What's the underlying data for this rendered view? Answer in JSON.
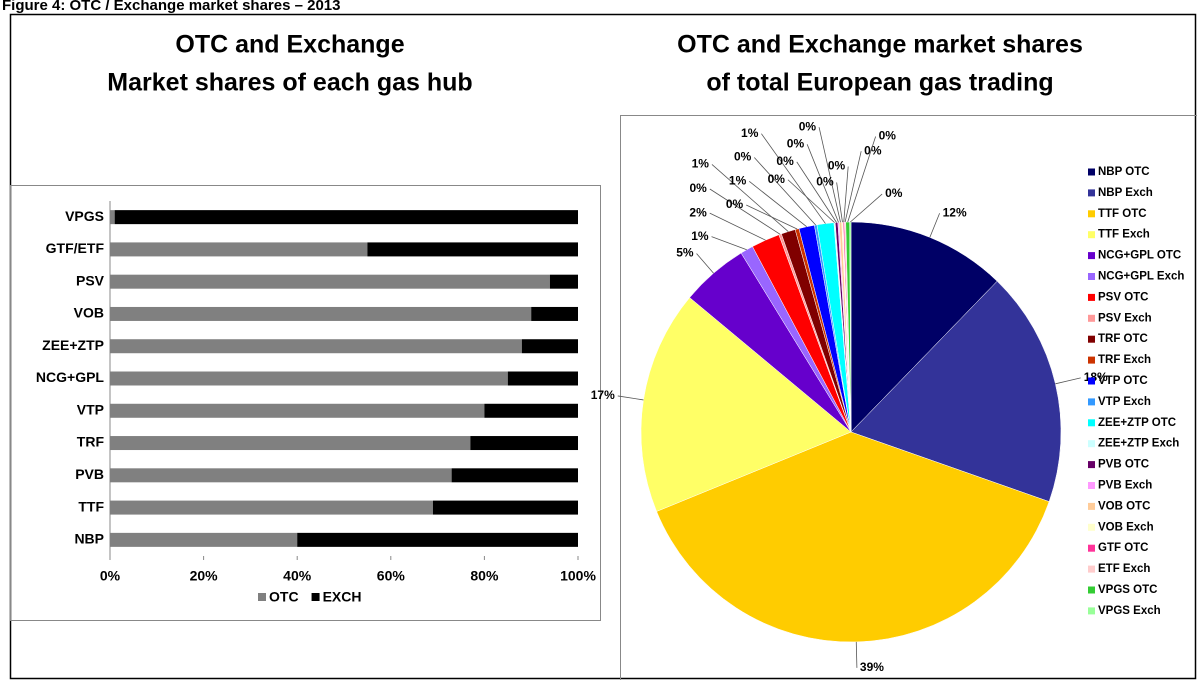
{
  "figure_title": "Figure 4: OTC / Exchange market shares – 2013",
  "chart_data": [
    {
      "type": "bar",
      "orientation": "horizontal",
      "stacked": true,
      "title": [
        "OTC and Exchange",
        "Market shares of each gas hub"
      ],
      "categories": [
        "NBP",
        "TTF",
        "PVB",
        "TRF",
        "VTP",
        "NCG+GPL",
        "ZEE+ZTP",
        "VOB",
        "PSV",
        "GTF/ETF",
        "VPGS"
      ],
      "series": [
        {
          "name": "OTC",
          "color": "#808080",
          "values": [
            40,
            69,
            73,
            77,
            80,
            85,
            88,
            90,
            94,
            55,
            1
          ]
        },
        {
          "name": "EXCH",
          "color": "#000000",
          "values": [
            60,
            31,
            27,
            23,
            20,
            15,
            12,
            10,
            6,
            45,
            99
          ]
        }
      ],
      "xlim": [
        0,
        100
      ],
      "xticks": [
        {
          "value": 0,
          "label": "0%"
        },
        {
          "value": 20,
          "label": "20%"
        },
        {
          "value": 40,
          "label": "40%"
        },
        {
          "value": 60,
          "label": "60%"
        },
        {
          "value": 80,
          "label": "80%"
        },
        {
          "value": 100,
          "label": "100%"
        }
      ],
      "legend": "bottom"
    },
    {
      "type": "pie",
      "title": [
        "OTC and Exchange market shares",
        "of total European gas trading"
      ],
      "categories": [
        "NBP OTC",
        "NBP Exch",
        "TTF OTC",
        "TTF Exch",
        "NCG+GPL OTC",
        "NCG+GPL Exch",
        "PSV OTC",
        "PSV Exch",
        "TRF OTC",
        "TRF Exch",
        "VTP OTC",
        "VTP Exch",
        "ZEE+ZTP OTC",
        "ZEE+ZTP Exch",
        "PVB OTC",
        "PVB Exch",
        "VOB OTC",
        "VOB Exch",
        "GTF OTC",
        "ETF Exch",
        "VPGS OTC",
        "VPGS Exch"
      ],
      "values": [
        12.3,
        18.2,
        38.6,
        17.3,
        5.2,
        1.0,
        2.2,
        0.2,
        1.1,
        0.3,
        1.2,
        0.2,
        1.3,
        0.1,
        0.2,
        0.1,
        0.2,
        0.1,
        0.1,
        0.1,
        0.3,
        0.1
      ],
      "value_labels": [
        "12%",
        "18%",
        "39%",
        "17%",
        "5%",
        "1%",
        "2%",
        "0%",
        "1%",
        "0%",
        "1%",
        "0%",
        "1%",
        "0%",
        "0%",
        "0%",
        "0%",
        "0%",
        "0%",
        "0%",
        "0%",
        "0%"
      ],
      "colors": [
        "#000066",
        "#333399",
        "#ffcc00",
        "#ffff66",
        "#6600cc",
        "#9966ff",
        "#ff0000",
        "#ff9999",
        "#800000",
        "#cc3300",
        "#0000ff",
        "#3399ff",
        "#00ffff",
        "#ccffff",
        "#660066",
        "#ff99ff",
        "#ffcc99",
        "#ffffcc",
        "#ff3399",
        "#ffcccc",
        "#33cc33",
        "#99ff99"
      ],
      "legend": "right"
    }
  ]
}
